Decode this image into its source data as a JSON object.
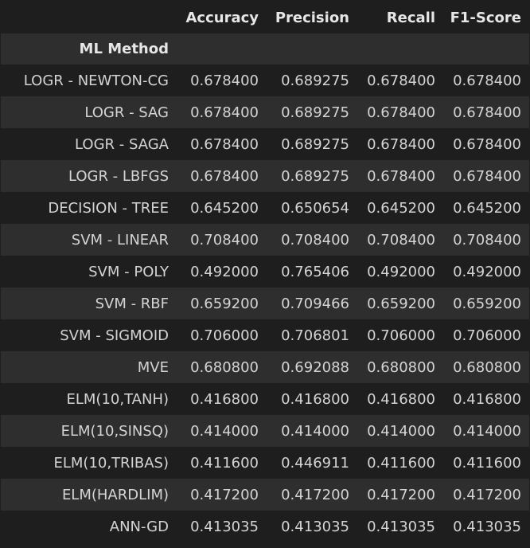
{
  "table": {
    "columns": [
      "Accuracy",
      "Precision",
      "Recall",
      "F1-Score"
    ],
    "index_name": "ML Method",
    "rows": [
      {
        "method": "LOGR - NEWTON-CG",
        "values": [
          "0.678400",
          "0.689275",
          "0.678400",
          "0.678400"
        ]
      },
      {
        "method": "LOGR - SAG",
        "values": [
          "0.678400",
          "0.689275",
          "0.678400",
          "0.678400"
        ]
      },
      {
        "method": "LOGR - SAGA",
        "values": [
          "0.678400",
          "0.689275",
          "0.678400",
          "0.678400"
        ]
      },
      {
        "method": "LOGR - LBFGS",
        "values": [
          "0.678400",
          "0.689275",
          "0.678400",
          "0.678400"
        ]
      },
      {
        "method": "DECISION - TREE",
        "values": [
          "0.645200",
          "0.650654",
          "0.645200",
          "0.645200"
        ]
      },
      {
        "method": "SVM - LINEAR",
        "values": [
          "0.708400",
          "0.708400",
          "0.708400",
          "0.708400"
        ]
      },
      {
        "method": "SVM - POLY",
        "values": [
          "0.492000",
          "0.765406",
          "0.492000",
          "0.492000"
        ]
      },
      {
        "method": "SVM - RBF",
        "values": [
          "0.659200",
          "0.709466",
          "0.659200",
          "0.659200"
        ]
      },
      {
        "method": "SVM - SIGMOID",
        "values": [
          "0.706000",
          "0.706801",
          "0.706000",
          "0.706000"
        ]
      },
      {
        "method": "MVE",
        "values": [
          "0.680800",
          "0.692088",
          "0.680800",
          "0.680800"
        ]
      },
      {
        "method": "ELM(10,TANH)",
        "values": [
          "0.416800",
          "0.416800",
          "0.416800",
          "0.416800"
        ]
      },
      {
        "method": "ELM(10,SINSQ)",
        "values": [
          "0.414000",
          "0.414000",
          "0.414000",
          "0.414000"
        ]
      },
      {
        "method": "ELM(10,TRIBAS)",
        "values": [
          "0.411600",
          "0.446911",
          "0.411600",
          "0.411600"
        ]
      },
      {
        "method": "ELM(HARDLIM)",
        "values": [
          "0.417200",
          "0.417200",
          "0.417200",
          "0.417200"
        ]
      },
      {
        "method": "ANN-GD",
        "values": [
          "0.413035",
          "0.413035",
          "0.413035",
          "0.413035"
        ]
      }
    ]
  },
  "colors": {
    "background": "#1e1e1e",
    "stripe": "#2e2e2e",
    "text": "#d4d4d4"
  }
}
